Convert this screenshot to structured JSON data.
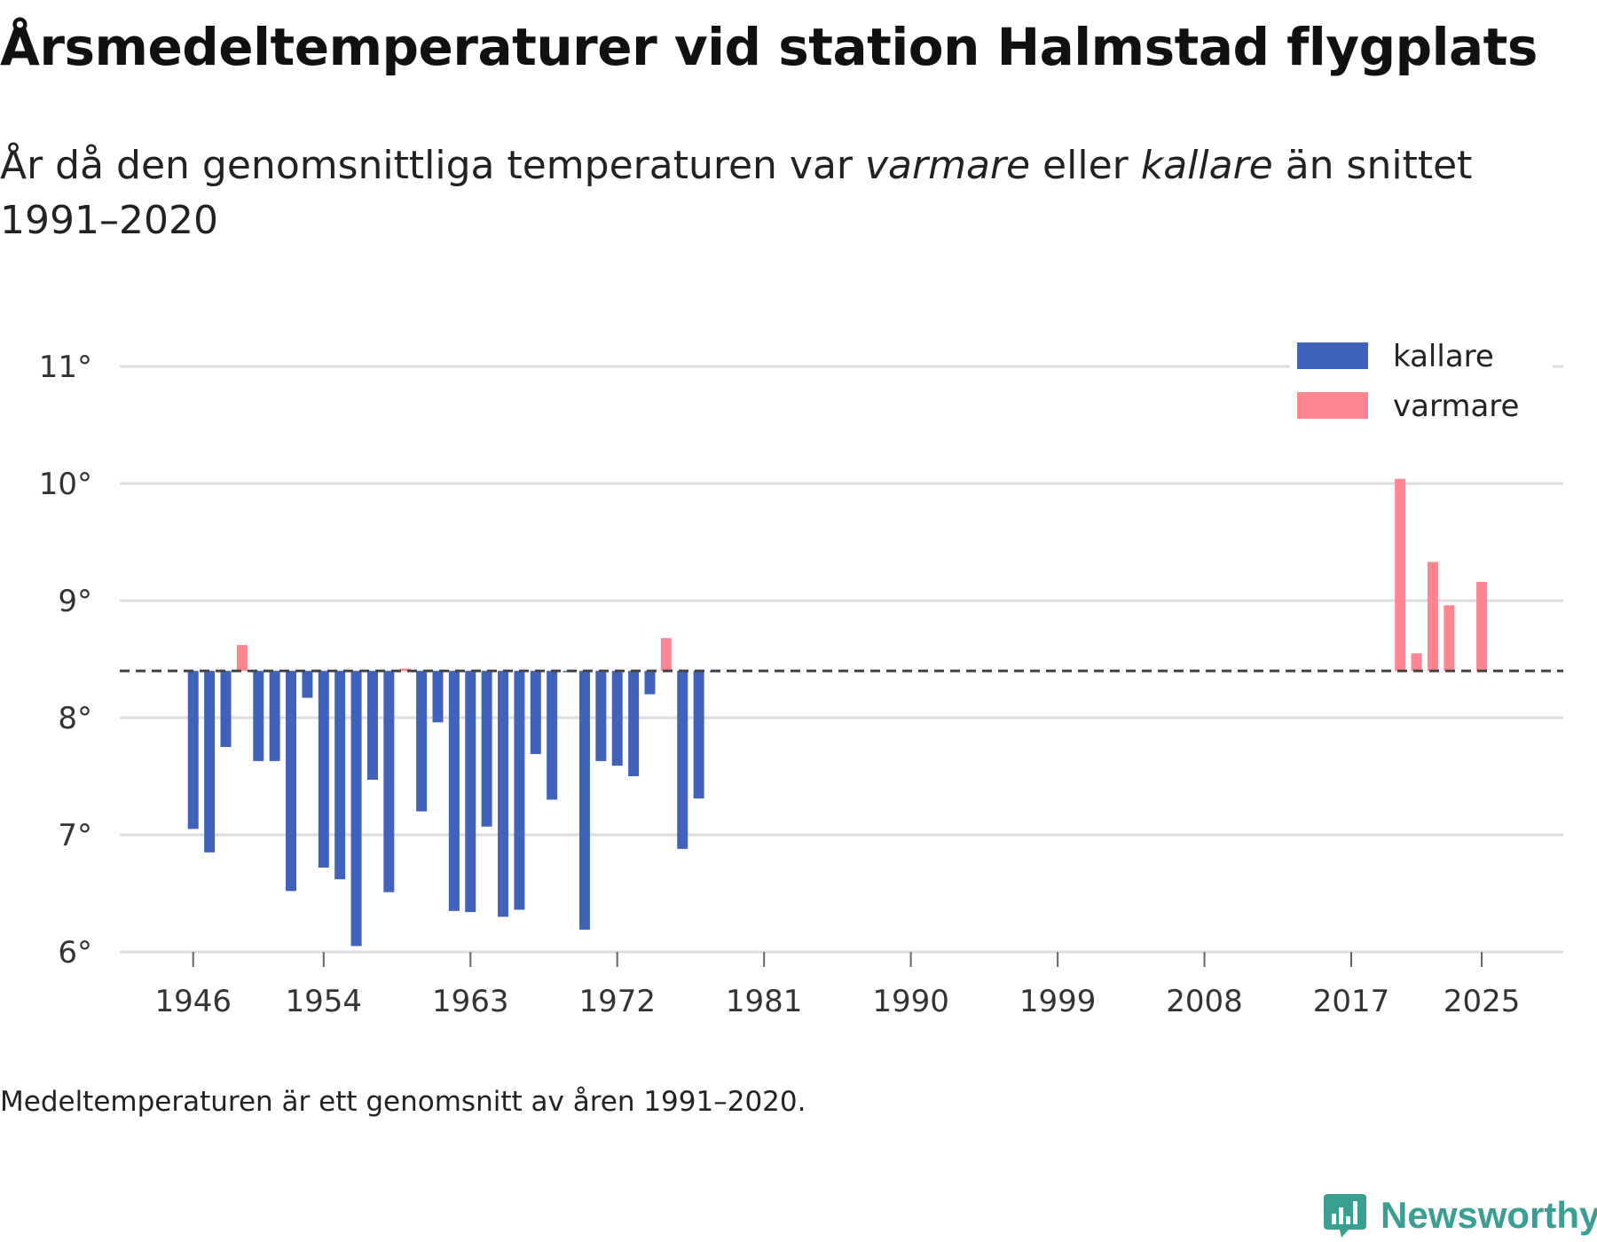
{
  "title": "Årsmedeltemperaturer vid station Halmstad flygplats",
  "subtitle": {
    "part1": "År då den genomsnittliga temperaturen var ",
    "warm_word": "varmare",
    "part2": " eller ",
    "cold_word": "kallare",
    "part3": " än snittet 1991–2020"
  },
  "footnote": "Medeltemperaturen är ett genomsnitt av åren 1991–2020.",
  "brand": {
    "name": "Newsworthy",
    "color": "#3a9e92"
  },
  "colors": {
    "cold": "#4062bb",
    "warm": "#ff8591",
    "grid": "#dddddd",
    "reference": "#444444"
  },
  "chart_data": {
    "type": "bar",
    "baseline": 8.4,
    "ylim": [
      6,
      11
    ],
    "xlim": [
      1941.5,
      2030
    ],
    "yticks": [
      6,
      7,
      8,
      9,
      10,
      11
    ],
    "ytick_labels": [
      "6°",
      "7°",
      "8°",
      "9°",
      "10°",
      "11°"
    ],
    "xticks": [
      1946,
      1954,
      1963,
      1972,
      1981,
      1990,
      1999,
      2008,
      2017,
      2025
    ],
    "xtick_labels": [
      "1946",
      "1954",
      "1963",
      "1972",
      "1981",
      "1990",
      "1999",
      "2008",
      "2017",
      "2025"
    ],
    "legend": [
      {
        "key": "cold",
        "label": "kallare"
      },
      {
        "key": "warm",
        "label": "varmare"
      }
    ],
    "legend_position": "top-right",
    "years": [
      1946,
      1947,
      1948,
      1949,
      1950,
      1951,
      1952,
      1953,
      1954,
      1955,
      1956,
      1957,
      1958,
      1959,
      1960,
      1961,
      1962,
      1963,
      1964,
      1965,
      1966,
      1967,
      1968,
      1969,
      1970,
      1971,
      1972,
      1973,
      1974,
      1975,
      1976,
      1977,
      1978,
      2020,
      2021,
      2022,
      2023,
      2025
    ],
    "values": [
      7.05,
      6.85,
      7.75,
      8.62,
      7.63,
      7.63,
      6.52,
      8.17,
      6.72,
      6.62,
      6.05,
      7.47,
      6.51,
      8.42,
      7.2,
      7.96,
      6.35,
      6.34,
      7.07,
      6.3,
      6.36,
      7.69,
      7.3,
      8.4,
      6.19,
      7.63,
      7.59,
      7.5,
      8.2,
      8.68,
      6.88,
      7.31,
      8.4,
      10.04,
      8.55,
      9.33,
      8.96,
      9.16
    ]
  }
}
